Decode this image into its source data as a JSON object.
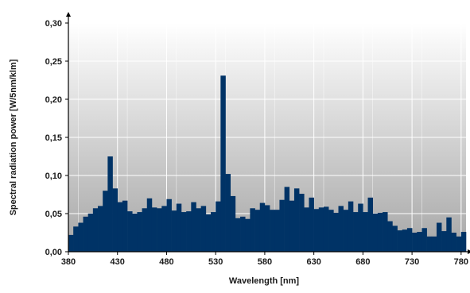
{
  "chart_data": {
    "type": "bar",
    "xlabel": "Wavelength [nm]",
    "ylabel": "Spectral radiation power [W/5nm/klm]",
    "xlim": [
      380,
      785
    ],
    "ylim": [
      0,
      0.3
    ],
    "x_ticks": [
      "380",
      "430",
      "480",
      "530",
      "580",
      "630",
      "680",
      "730",
      "780"
    ],
    "y_ticks": [
      "0,00",
      "0,05",
      "0,10",
      "0,15",
      "0,20",
      "0,25",
      "0,30"
    ],
    "grid": true,
    "bar_color": "#003366",
    "bin_width_nm": 5,
    "x": [
      380,
      385,
      390,
      395,
      400,
      405,
      410,
      415,
      420,
      425,
      430,
      435,
      440,
      445,
      450,
      455,
      460,
      465,
      470,
      475,
      480,
      485,
      490,
      495,
      500,
      505,
      510,
      515,
      520,
      525,
      530,
      535,
      540,
      545,
      550,
      555,
      560,
      565,
      570,
      575,
      580,
      585,
      590,
      595,
      600,
      605,
      610,
      615,
      620,
      625,
      630,
      635,
      640,
      645,
      650,
      655,
      660,
      665,
      670,
      675,
      680,
      685,
      690,
      695,
      700,
      705,
      710,
      715,
      720,
      725,
      730,
      735,
      740,
      745,
      750,
      755,
      760,
      765,
      770,
      775,
      780
    ],
    "values": [
      0.022,
      0.033,
      0.038,
      0.046,
      0.05,
      0.057,
      0.06,
      0.08,
      0.125,
      0.083,
      0.065,
      0.067,
      0.053,
      0.05,
      0.052,
      0.057,
      0.07,
      0.058,
      0.057,
      0.06,
      0.069,
      0.054,
      0.063,
      0.052,
      0.053,
      0.065,
      0.057,
      0.06,
      0.049,
      0.052,
      0.066,
      0.231,
      0.102,
      0.073,
      0.044,
      0.046,
      0.043,
      0.057,
      0.055,
      0.064,
      0.061,
      0.055,
      0.055,
      0.068,
      0.085,
      0.067,
      0.083,
      0.076,
      0.058,
      0.071,
      0.056,
      0.058,
      0.059,
      0.055,
      0.051,
      0.06,
      0.055,
      0.066,
      0.052,
      0.063,
      0.052,
      0.071,
      0.05,
      0.051,
      0.052,
      0.04,
      0.034,
      0.028,
      0.029,
      0.031,
      0.025,
      0.026,
      0.031,
      0.02,
      0.02,
      0.038,
      0.027,
      0.045,
      0.025,
      0.02,
      0.026
    ]
  }
}
